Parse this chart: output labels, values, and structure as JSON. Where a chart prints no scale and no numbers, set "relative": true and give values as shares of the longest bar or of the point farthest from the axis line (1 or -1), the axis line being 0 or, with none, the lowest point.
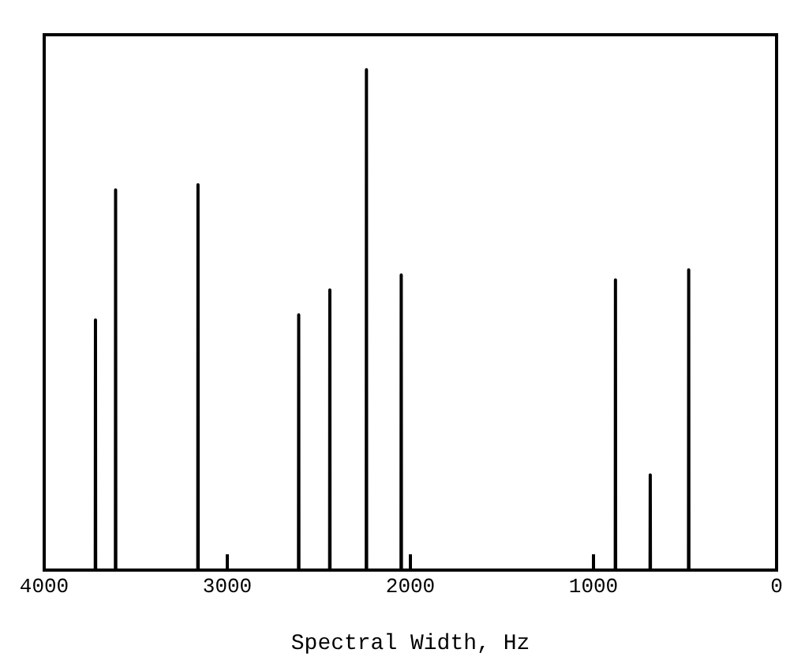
{
  "chart_data": {
    "type": "line",
    "xlabel": "Spectral Width, Hz",
    "relative": true,
    "color": "#000000",
    "marker": "none",
    "grid": false,
    "x": [
      4000,
      3721,
      3720,
      3719,
      3611,
      3610,
      3609,
      3161,
      3160,
      3159,
      2611,
      2610,
      2609,
      2441,
      2440,
      2439,
      2241,
      2240,
      2239,
      2051,
      2050,
      2049,
      881,
      880,
      879,
      691,
      690,
      689,
      481,
      480,
      479,
      0
    ],
    "values": [
      0,
      0,
      0.5,
      0,
      0,
      0.76,
      0,
      0,
      0.77,
      0,
      0,
      0.51,
      0,
      0,
      0.56,
      0,
      0,
      1,
      0,
      0,
      0.59,
      0,
      0,
      0.58,
      0,
      0,
      0.19,
      0,
      0,
      0.6,
      0,
      0
    ],
    "xlim": [
      4000,
      0
    ],
    "xticks": [
      4000,
      3000,
      2000,
      1000,
      0
    ]
  }
}
